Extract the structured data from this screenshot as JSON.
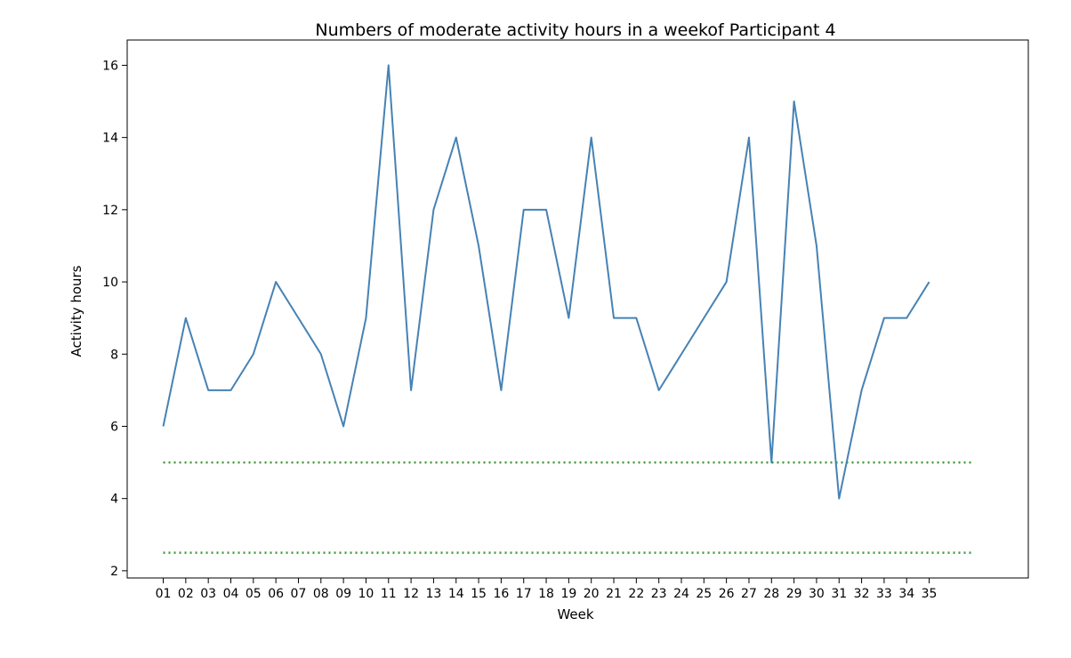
{
  "chart_data": {
    "type": "line",
    "title": "Numbers of moderate activity hours in a weekof Participant 4",
    "xlabel": "Week",
    "ylabel": "Activity hours",
    "x": [
      "01",
      "02",
      "03",
      "04",
      "05",
      "06",
      "07",
      "08",
      "09",
      "10",
      "11",
      "12",
      "13",
      "14",
      "15",
      "16",
      "17",
      "18",
      "19",
      "20",
      "21",
      "22",
      "23",
      "24",
      "25",
      "26",
      "27",
      "28",
      "29",
      "30",
      "31",
      "32",
      "33",
      "34",
      "35"
    ],
    "series": [
      {
        "values": [
          6,
          9,
          7,
          7,
          8,
          10,
          9,
          8,
          6,
          9,
          16,
          7,
          12,
          14,
          11,
          7,
          12,
          12,
          9,
          14,
          9,
          9,
          7,
          8,
          9,
          10,
          14,
          5,
          15,
          11,
          4,
          7,
          9,
          9,
          10
        ],
        "color": "#4682b4"
      }
    ],
    "reference_lines": [
      {
        "y": 5,
        "color": "#3a9a3a",
        "style": "dotted"
      },
      {
        "y": 2.5,
        "color": "#3a9a3a",
        "style": "dotted"
      }
    ],
    "yticks": [
      2,
      4,
      6,
      8,
      10,
      12,
      14,
      16
    ],
    "ylim": [
      1.8,
      16.7
    ],
    "xlim_index": [
      -1.6,
      38.4
    ],
    "reference_xrange_index": [
      0,
      36
    ],
    "grid": false,
    "legend": "none"
  }
}
